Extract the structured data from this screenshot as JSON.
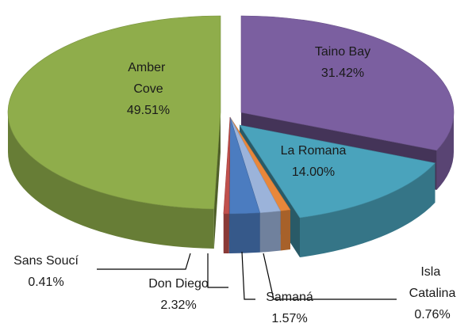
{
  "chart_data": {
    "type": "pie3d",
    "categories": [
      "Taino Bay",
      "La Romana",
      "Isla Catalina",
      "Samaná",
      "Don Diego",
      "Sans Soucí",
      "Amber Cove"
    ],
    "values": [
      31.42,
      14.0,
      0.76,
      1.57,
      2.32,
      0.41,
      49.51
    ],
    "value_labels": [
      "31.42%",
      "14.00%",
      "0.76%",
      "1.57%",
      "2.32%",
      "0.41%",
      "49.51%"
    ],
    "colors": [
      "#7b5fa0",
      "#4aa3bc",
      "#e8873a",
      "#9bb3da",
      "#4b7cc0",
      "#c0504d",
      "#8fad4b"
    ]
  }
}
